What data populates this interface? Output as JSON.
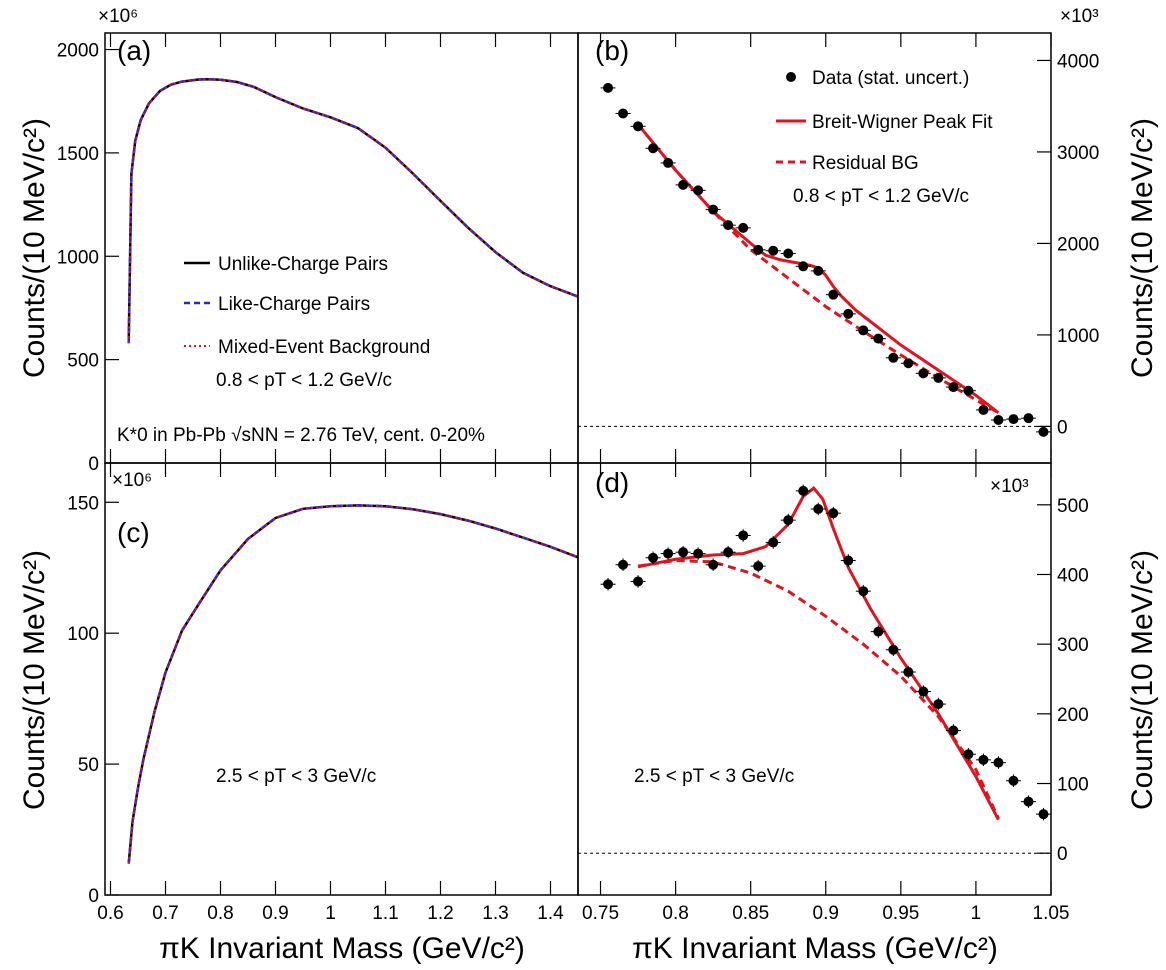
{
  "colors": {
    "unlike": "#000000",
    "like": "#1a2bd6",
    "mixed": "#e0141e",
    "fit": "#e0141e",
    "data": "#000000"
  },
  "axis_titles": {
    "y_left": "Counts/(10 MeV/c²)",
    "y_right": "Counts/(10 MeV/c²)",
    "x_left": "πK Invariant Mass (GeV/c²)",
    "x_right": "πK Invariant Mass (GeV/c²)"
  },
  "panel_labels": {
    "a": "(a)",
    "b": "(b)",
    "c": "(c)",
    "d": "(d)"
  },
  "multipliers": {
    "a": "×10⁶",
    "b": "×10³",
    "c": "×10⁶",
    "d": "×10³"
  },
  "legend_a": {
    "unlike": "Unlike-Charge Pairs",
    "like": "Like-Charge Pairs",
    "mixed": "Mixed-Event Background",
    "pt_range": "0.8 < pT < 1.2 GeV/c",
    "system": "K*0 in Pb-Pb √sNN = 2.76 TeV, cent. 0-20%"
  },
  "legend_b": {
    "data": "Data (stat. uncert.)",
    "fit": "Breit-Wigner Peak Fit",
    "bg": "Residual BG",
    "pt_range": "0.8 < pT < 1.2 GeV/c"
  },
  "label_c": {
    "pt_range": "2.5 < pT < 3 GeV/c"
  },
  "label_d": {
    "pt_range": "2.5 < pT < 3 GeV/c"
  },
  "chart_data": [
    {
      "panel": "a",
      "type": "line",
      "xlim": [
        0.59,
        1.45
      ],
      "ylim": [
        0,
        2080
      ],
      "y_unit_multiplier": "×10⁶",
      "yticks": [
        0,
        500,
        1000,
        1500,
        2000
      ],
      "ylabel": "Counts/(10 MeV/c²)",
      "series": [
        {
          "name": "Unlike-Charge Pairs",
          "x": [
            0.633,
            0.638,
            0.645,
            0.655,
            0.67,
            0.69,
            0.71,
            0.73,
            0.76,
            0.78,
            0.8,
            0.83,
            0.86,
            0.9,
            0.95,
            1.0,
            1.05,
            1.1,
            1.15,
            1.2,
            1.25,
            1.3,
            1.35,
            1.4,
            1.45
          ],
          "y": [
            580,
            1400,
            1560,
            1660,
            1740,
            1800,
            1830,
            1845,
            1855,
            1856,
            1854,
            1843,
            1820,
            1770,
            1715,
            1672,
            1620,
            1525,
            1400,
            1268,
            1138,
            1020,
            920,
            855,
            805
          ]
        },
        {
          "name": "Like-Charge Pairs",
          "same_as": "Unlike-Charge Pairs"
        },
        {
          "name": "Mixed-Event Background",
          "same_as": "Unlike-Charge Pairs"
        }
      ]
    },
    {
      "panel": "b",
      "type": "scatter",
      "xlim": [
        0.735,
        1.05
      ],
      "ylim": [
        -400,
        4300
      ],
      "y_unit_multiplier": "×10³",
      "yticks": [
        0,
        1000,
        2000,
        3000,
        4000
      ],
      "xticks": [
        0.75,
        0.8,
        0.85,
        0.9,
        0.95,
        1,
        1.05
      ],
      "xlabel": "πK Invariant Mass (GeV/c²)",
      "ylabel": "Counts/(10 MeV/c²)",
      "series": [
        {
          "name": "Data (stat. uncert.)",
          "x": [
            0.755,
            0.765,
            0.775,
            0.785,
            0.795,
            0.805,
            0.815,
            0.825,
            0.835,
            0.845,
            0.855,
            0.865,
            0.875,
            0.885,
            0.895,
            0.905,
            0.915,
            0.925,
            0.935,
            0.945,
            0.955,
            0.965,
            0.975,
            0.985,
            0.995,
            1.005,
            1.015,
            1.025,
            1.035,
            1.045
          ],
          "y": [
            3700,
            3420,
            3280,
            3040,
            2880,
            2640,
            2580,
            2370,
            2200,
            2170,
            1930,
            1920,
            1890,
            1750,
            1700,
            1440,
            1230,
            1050,
            960,
            750,
            690,
            580,
            530,
            430,
            390,
            180,
            70,
            80,
            90,
            -60
          ],
          "yerr": 35
        },
        {
          "name": "Breit-Wigner Peak Fit",
          "x": [
            0.775,
            0.8,
            0.825,
            0.85,
            0.86,
            0.87,
            0.88,
            0.89,
            0.895,
            0.9,
            0.905,
            0.91,
            0.92,
            0.95,
            1.0,
            1.015
          ],
          "y": [
            3300,
            2800,
            2350,
            2000,
            1870,
            1820,
            1790,
            1760,
            1730,
            1650,
            1530,
            1430,
            1270,
            890,
            340,
            150
          ]
        },
        {
          "name": "Residual BG",
          "x": [
            0.775,
            0.8,
            0.825,
            0.85,
            0.875,
            0.9,
            0.925,
            0.95,
            0.975,
            1.0,
            1.015
          ],
          "y": [
            3300,
            2800,
            2350,
            1930,
            1620,
            1310,
            1040,
            780,
            530,
            290,
            150
          ]
        }
      ]
    },
    {
      "panel": "c",
      "type": "line",
      "xlim": [
        0.59,
        1.45
      ],
      "ylim": [
        0,
        165
      ],
      "y_unit_multiplier": "×10⁶",
      "yticks": [
        0,
        50,
        100,
        150
      ],
      "xticks": [
        0.6,
        0.7,
        0.8,
        0.9,
        1,
        1.1,
        1.2,
        1.3,
        1.4
      ],
      "xlabel": "πK Invariant Mass (GeV/c²)",
      "ylabel": "Counts/(10 MeV/c²)",
      "series": [
        {
          "name": "Unlike-Charge Pairs",
          "x": [
            0.633,
            0.64,
            0.65,
            0.66,
            0.68,
            0.7,
            0.73,
            0.76,
            0.8,
            0.85,
            0.9,
            0.95,
            1.0,
            1.05,
            1.1,
            1.15,
            1.2,
            1.25,
            1.3,
            1.35,
            1.4,
            1.45
          ],
          "y": [
            12,
            28,
            41,
            52,
            70,
            85,
            101,
            111,
            124,
            136,
            144,
            147.5,
            148.5,
            148.8,
            148.5,
            147.3,
            145.5,
            143,
            140,
            136.5,
            133,
            129
          ]
        },
        {
          "name": "Like-Charge Pairs",
          "same_as": "Unlike-Charge Pairs"
        },
        {
          "name": "Mixed-Event Background",
          "same_as": "Unlike-Charge Pairs"
        }
      ]
    },
    {
      "panel": "d",
      "type": "scatter",
      "xlim": [
        0.735,
        1.05
      ],
      "ylim": [
        -60,
        560
      ],
      "y_unit_multiplier": "×10³",
      "yticks": [
        0,
        100,
        200,
        300,
        400,
        500
      ],
      "xticks": [
        0.75,
        0.8,
        0.85,
        0.9,
        0.95,
        1,
        1.05
      ],
      "xlabel": "πK Invariant Mass (GeV/c²)",
      "ylabel": "Counts/(10 MeV/c²)",
      "series": [
        {
          "name": "Data (stat. uncert.)",
          "x": [
            0.755,
            0.765,
            0.775,
            0.785,
            0.795,
            0.805,
            0.815,
            0.825,
            0.835,
            0.845,
            0.855,
            0.865,
            0.875,
            0.885,
            0.895,
            0.905,
            0.915,
            0.925,
            0.935,
            0.945,
            0.955,
            0.965,
            0.975,
            0.985,
            0.995,
            1.005,
            1.015,
            1.025,
            1.035,
            1.045
          ],
          "y": [
            386,
            414,
            390,
            424,
            430,
            432,
            430,
            414,
            432,
            456,
            412,
            446,
            478,
            520,
            494,
            488,
            420,
            376,
            318,
            292,
            260,
            232,
            214,
            176,
            142,
            134,
            130,
            104,
            74,
            56
          ],
          "yerr": 9
        },
        {
          "name": "Breit-Wigner Peak Fit",
          "x": [
            0.775,
            0.8,
            0.825,
            0.845,
            0.86,
            0.875,
            0.885,
            0.892,
            0.898,
            0.905,
            0.915,
            0.93,
            0.95,
            0.975,
            1.0,
            1.015
          ],
          "y": [
            411,
            422,
            428,
            430,
            440,
            472,
            512,
            524,
            508,
            466,
            410,
            350,
            280,
            200,
            110,
            48
          ]
        },
        {
          "name": "Residual BG",
          "x": [
            0.775,
            0.8,
            0.825,
            0.85,
            0.875,
            0.9,
            0.925,
            0.95,
            0.975,
            1.0,
            1.015
          ],
          "y": [
            412,
            420,
            418,
            402,
            376,
            340,
            300,
            254,
            196,
            120,
            50
          ]
        }
      ]
    }
  ]
}
